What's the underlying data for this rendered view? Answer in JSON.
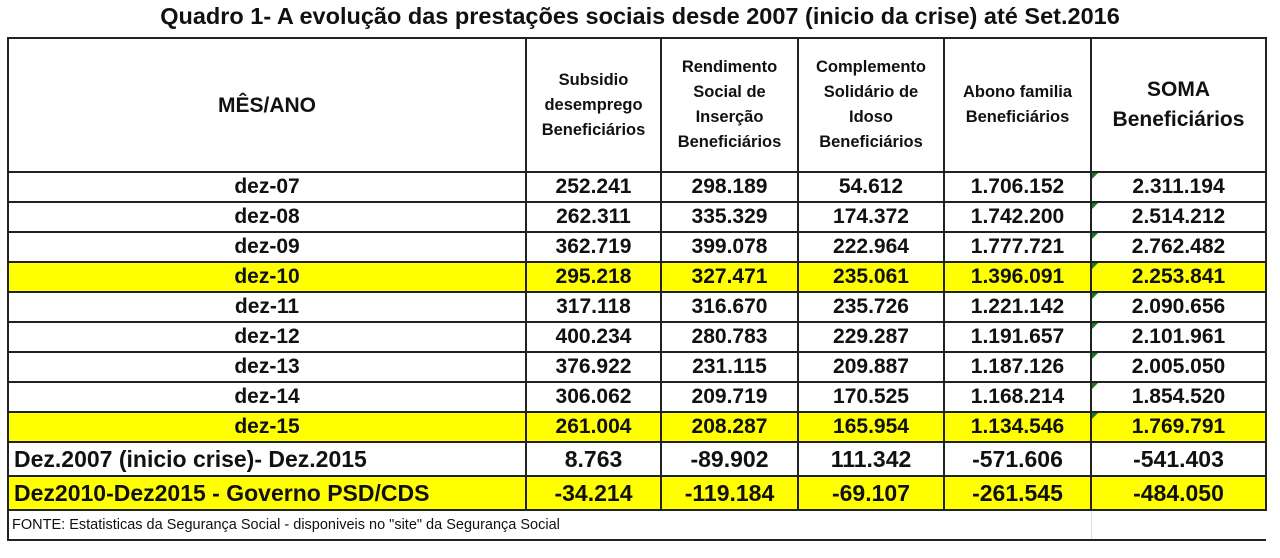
{
  "title": "Quadro 1- A evolução das prestações sociais desde 2007 (inicio da crise) até Set.2016",
  "table": {
    "headers": [
      "MÊS/ANO",
      "Subsidio desemprego Beneficiários",
      "Rendimento Social de Inserção Beneficiários",
      "Complemento Solidário de Idoso Beneficiários",
      "Abono familia Beneficiários",
      "SOMA Beneficiários"
    ],
    "header_lines": {
      "c1": [
        "Subsidio",
        "desemprego",
        "Beneficiários"
      ],
      "c2": [
        "Rendimento",
        "Social de",
        "Inserção",
        "Beneficiários"
      ],
      "c3": [
        "Complemento",
        "Solidário de",
        "Idoso",
        "Beneficiários"
      ],
      "c4": [
        "Abono familia",
        "Beneficiários"
      ],
      "c5": [
        "SOMA",
        "Beneficiários"
      ]
    },
    "rows": [
      {
        "label": "dez-07",
        "values": [
          "252.241",
          "298.189",
          "54.612",
          "1.706.152",
          "2.311.194"
        ],
        "highlight": false
      },
      {
        "label": "dez-08",
        "values": [
          "262.311",
          "335.329",
          "174.372",
          "1.742.200",
          "2.514.212"
        ],
        "highlight": false
      },
      {
        "label": "dez-09",
        "values": [
          "362.719",
          "399.078",
          "222.964",
          "1.777.721",
          "2.762.482"
        ],
        "highlight": false
      },
      {
        "label": "dez-10",
        "values": [
          "295.218",
          "327.471",
          "235.061",
          "1.396.091",
          "2.253.841"
        ],
        "highlight": true
      },
      {
        "label": "dez-11",
        "values": [
          "317.118",
          "316.670",
          "235.726",
          "1.221.142",
          "2.090.656"
        ],
        "highlight": false
      },
      {
        "label": "dez-12",
        "values": [
          "400.234",
          "280.783",
          "229.287",
          "1.191.657",
          "2.101.961"
        ],
        "highlight": false
      },
      {
        "label": "dez-13",
        "values": [
          "376.922",
          "231.115",
          "209.887",
          "1.187.126",
          "2.005.050"
        ],
        "highlight": false
      },
      {
        "label": "dez-14",
        "values": [
          "306.062",
          "209.719",
          "170.525",
          "1.168.214",
          "1.854.520"
        ],
        "highlight": false
      },
      {
        "label": "dez-15",
        "values": [
          "261.004",
          "208.287",
          "165.954",
          "1.134.546",
          "1.769.791"
        ],
        "highlight": true
      }
    ],
    "summary_rows": [
      {
        "label": "Dez.2007 (inicio crise)- Dez.2015",
        "values": [
          "8.763",
          "-89.902",
          "111.342",
          "-571.606",
          "-541.403"
        ],
        "highlight": false
      },
      {
        "label": "Dez2010-Dez2015 - Governo PSD/CDS",
        "values": [
          "-34.214",
          "-119.184",
          "-69.107",
          "-261.545",
          "-484.050"
        ],
        "highlight": true
      }
    ],
    "footer": "FONTE: Estatisticas da Segurança Social - disponiveis no \"site\" da Segurança Social"
  },
  "colors": {
    "highlight": "#ffff00",
    "border": "#222222",
    "error_tick": "#1a7a1a"
  }
}
